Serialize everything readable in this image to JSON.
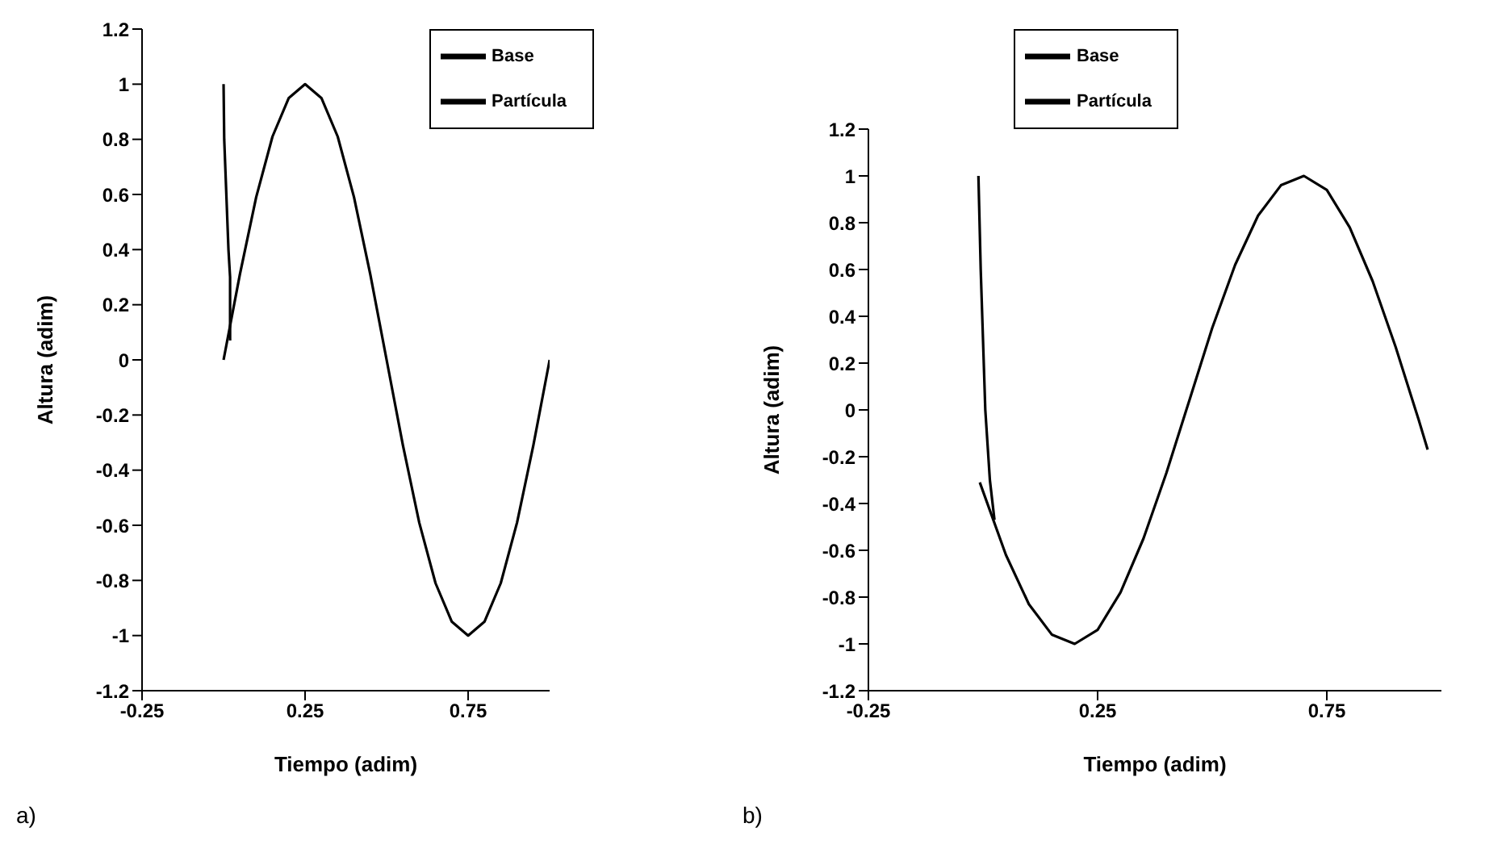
{
  "chart_data": [
    {
      "type": "line",
      "xlabel": "Tiempo (adim)",
      "ylabel": "Altura (adim)",
      "annotations": [
        "a)"
      ],
      "xlim": [
        -0.25,
        1
      ],
      "xticks": [
        -0.25,
        0.25,
        0.75
      ],
      "ylim": [
        -1.2,
        1.2
      ],
      "yticks": [
        -1.2,
        -1,
        -0.8,
        -0.6,
        -0.4,
        -0.2,
        0,
        0.2,
        0.4,
        0.6,
        0.8,
        1,
        1.2
      ],
      "grid": false,
      "legend": "top right",
      "line_style": "solid",
      "marker": "none",
      "series": [
        {
          "name": "Base",
          "color": "#000000",
          "x": [
            0,
            0.05,
            0.1,
            0.15,
            0.2,
            0.25,
            0.3,
            0.35,
            0.4,
            0.45,
            0.5,
            0.55,
            0.6,
            0.65,
            0.7,
            0.75,
            0.8,
            0.85,
            0.9,
            0.95,
            1
          ],
          "values": [
            0,
            0.31,
            0.59,
            0.81,
            0.95,
            1,
            0.95,
            0.81,
            0.59,
            0.31,
            0,
            -0.31,
            -0.59,
            -0.81,
            -0.95,
            -1,
            -0.95,
            -0.81,
            -0.59,
            -0.31,
            0
          ]
        },
        {
          "name": "Partícula",
          "color": "#000000",
          "x": [
            0,
            0.002,
            0.015,
            0.02,
            0.02
          ],
          "values": [
            1,
            0.8,
            0.4,
            0.3,
            0.07
          ]
        }
      ]
    },
    {
      "type": "line",
      "xlabel": "Tiempo (adim)",
      "ylabel": "Altura (adim)",
      "annotations": [
        "b)"
      ],
      "xlim": [
        -0.25,
        1
      ],
      "xticks": [
        -0.25,
        0.25,
        0.75
      ],
      "ylim": [
        -1.2,
        1.2
      ],
      "yticks": [
        -1.2,
        -1,
        -0.8,
        -0.6,
        -0.4,
        -0.2,
        0,
        0.2,
        0.4,
        0.6,
        0.8,
        1,
        1.2
      ],
      "grid": false,
      "legend": "top",
      "line_style": "solid",
      "marker": "none",
      "series": [
        {
          "name": "Base",
          "color": "#000000",
          "x": [
            -0.007,
            0.05,
            0.1,
            0.15,
            0.2,
            0.25,
            0.3,
            0.35,
            0.4,
            0.45,
            0.5,
            0.55,
            0.6,
            0.65,
            0.7,
            0.75,
            0.8,
            0.85,
            0.9,
            0.95,
            0.97
          ],
          "values": [
            -0.31,
            -0.62,
            -0.83,
            -0.96,
            -1,
            -0.94,
            -0.78,
            -0.55,
            -0.27,
            0.04,
            0.35,
            0.62,
            0.83,
            0.96,
            1,
            0.94,
            0.78,
            0.55,
            0.27,
            -0.04,
            -0.17
          ]
        },
        {
          "name": "Partícula",
          "color": "#000000",
          "x": [
            -0.01,
            -0.005,
            0.005,
            0.015,
            0.025
          ],
          "values": [
            1,
            0.6,
            0,
            -0.3,
            -0.47
          ]
        }
      ]
    }
  ]
}
